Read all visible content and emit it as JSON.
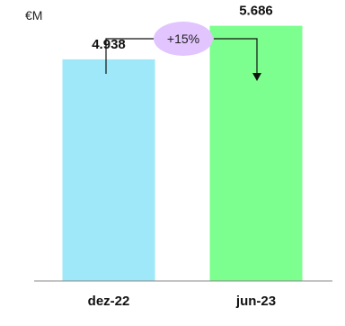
{
  "chart_data": {
    "type": "bar",
    "unit_label": "€M",
    "categories": [
      "dez-22",
      "jun-23"
    ],
    "values": [
      4.938,
      5.686
    ],
    "value_labels": [
      "4.938",
      "5.686"
    ],
    "change_label": "+15%",
    "ylim": [
      0,
      6.1
    ],
    "grid": false,
    "colors": [
      "#9EE8FA",
      "#7CFF8E"
    ],
    "change_bubble_color": "#E2C4FF",
    "axis_color": "#888888"
  }
}
